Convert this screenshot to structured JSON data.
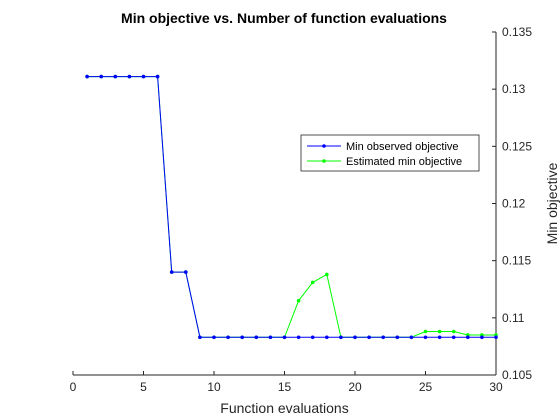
{
  "chart_data": {
    "type": "line",
    "title": "Min objective vs. Number of function evaluations",
    "xlabel": "Function evaluations",
    "ylabel": "Min objective",
    "xlim": [
      0,
      30
    ],
    "ylim": [
      0.105,
      0.135
    ],
    "x_ticks": [
      0,
      5,
      10,
      15,
      20,
      25,
      30
    ],
    "y_ticks": [
      0.105,
      0.11,
      0.115,
      0.12,
      0.125,
      0.13,
      0.135
    ],
    "x_tick_labels": [
      "0",
      "5",
      "10",
      "15",
      "20",
      "25",
      "30"
    ],
    "y_tick_labels": [
      "0.105",
      "0.11",
      "0.115",
      "0.12",
      "0.125",
      "0.13",
      "0.135"
    ],
    "y_axis_side": "right",
    "grid": false,
    "legend_position": "upper-right",
    "x": [
      1,
      2,
      3,
      4,
      5,
      6,
      7,
      8,
      9,
      10,
      11,
      12,
      13,
      14,
      15,
      16,
      17,
      18,
      19,
      20,
      21,
      22,
      23,
      24,
      25,
      26,
      27,
      28,
      29,
      30
    ],
    "series": [
      {
        "name": "Min observed objective",
        "color": "#0000ff",
        "marker": "dot",
        "values": [
          0.1311,
          0.1311,
          0.1311,
          0.1311,
          0.1311,
          0.1311,
          0.114,
          0.114,
          0.1083,
          0.1083,
          0.1083,
          0.1083,
          0.1083,
          0.1083,
          0.1083,
          0.1083,
          0.1083,
          0.1083,
          0.1083,
          0.1083,
          0.1083,
          0.1083,
          0.1083,
          0.1083,
          0.1083,
          0.1083,
          0.1083,
          0.1083,
          0.1083,
          0.1083
        ]
      },
      {
        "name": "Estimated min objective",
        "color": "#00ff00",
        "marker": "dot",
        "values": [
          0.1311,
          0.1311,
          0.1311,
          0.1311,
          0.1311,
          0.1311,
          0.114,
          0.114,
          0.1083,
          0.1083,
          0.1083,
          0.1083,
          0.1083,
          0.1083,
          0.1083,
          0.1115,
          0.1131,
          0.1138,
          0.1083,
          0.1083,
          0.1083,
          0.1083,
          0.1083,
          0.1083,
          0.1088,
          0.1088,
          0.1088,
          0.1085,
          0.1085,
          0.1085
        ]
      }
    ]
  }
}
